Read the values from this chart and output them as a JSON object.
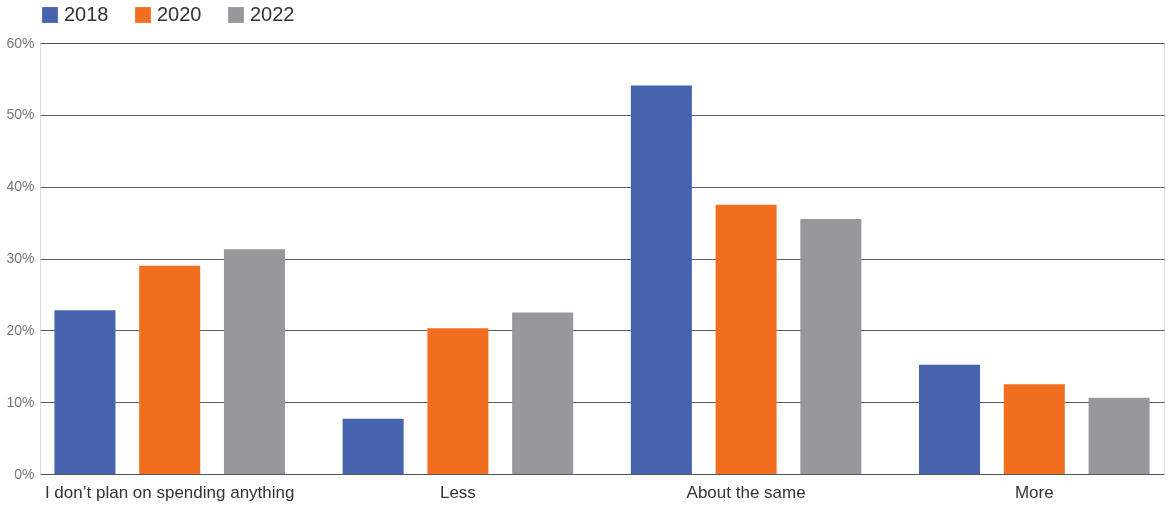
{
  "chart_data": {
    "type": "bar",
    "categories": [
      "I don’t plan on spending anything",
      "Less",
      "About the same",
      "More"
    ],
    "series": [
      {
        "name": "2018",
        "color": "#4763ad",
        "values": [
          22.8,
          7.7,
          54.1,
          15.2
        ]
      },
      {
        "name": "2020",
        "color": "#f26f21",
        "values": [
          29.0,
          20.3,
          37.5,
          12.5
        ]
      },
      {
        "name": "2022",
        "color": "#98989c",
        "values": [
          31.3,
          22.5,
          35.5,
          10.6
        ]
      }
    ],
    "ylim": [
      0,
      60
    ],
    "yticks": [
      {
        "value": 0,
        "label": "0%"
      },
      {
        "value": 10,
        "label": "10%"
      },
      {
        "value": 20,
        "label": "20%"
      },
      {
        "value": 30,
        "label": "30%"
      },
      {
        "value": 40,
        "label": "40%"
      },
      {
        "value": 50,
        "label": "50%"
      },
      {
        "value": 60,
        "label": "60%"
      }
    ],
    "grid": "y",
    "legend": "top"
  }
}
